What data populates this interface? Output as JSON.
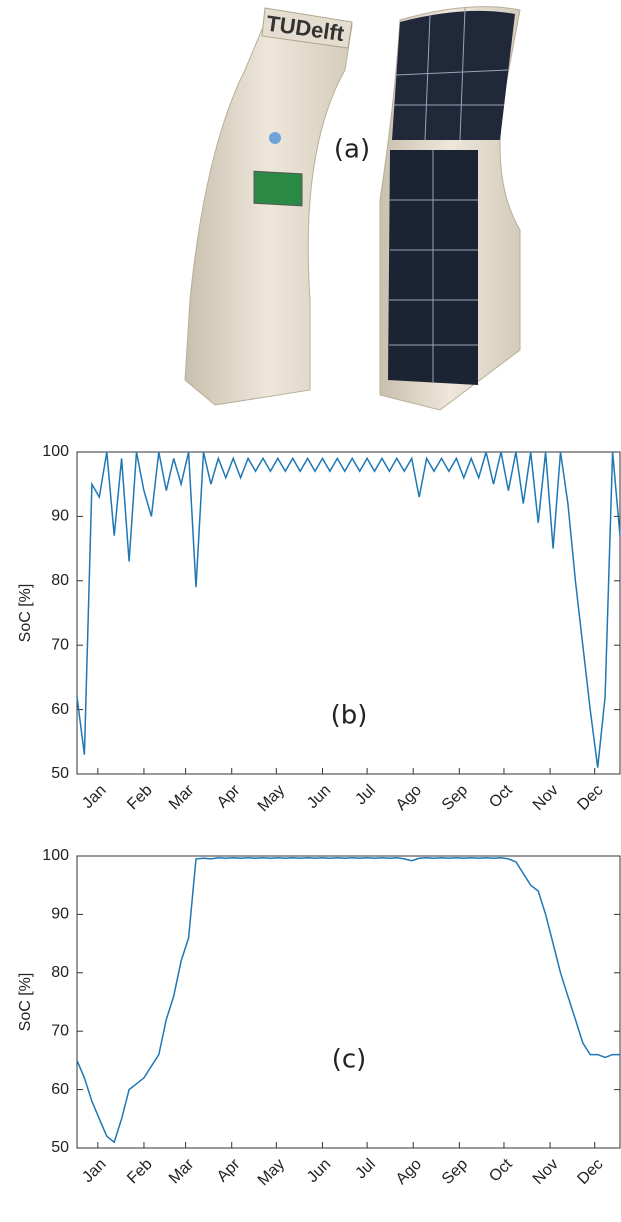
{
  "figure": {
    "label": "(a)",
    "logo": "TUDelft"
  },
  "chart_data": [
    {
      "type": "line",
      "ylabel": "SoC [%]",
      "annotation": "(b)",
      "color": "#1f77b4",
      "xlim": [
        1,
        366
      ],
      "ylim": [
        50,
        100
      ],
      "yticks": [
        50,
        60,
        70,
        80,
        90,
        100
      ],
      "xticks": [
        {
          "value": 15,
          "label": "Jan"
        },
        {
          "value": 46,
          "label": "Feb"
        },
        {
          "value": 74,
          "label": "Mar"
        },
        {
          "value": 105,
          "label": "Apr"
        },
        {
          "value": 135,
          "label": "May"
        },
        {
          "value": 166,
          "label": "Jun"
        },
        {
          "value": 196,
          "label": "Jul"
        },
        {
          "value": 227,
          "label": "Ago"
        },
        {
          "value": 258,
          "label": "Sep"
        },
        {
          "value": 288,
          "label": "Oct"
        },
        {
          "value": 319,
          "label": "Nov"
        },
        {
          "value": 349,
          "label": "Dec"
        }
      ],
      "x": [
        1,
        6,
        11,
        16,
        21,
        26,
        31,
        36,
        41,
        46,
        51,
        56,
        61,
        66,
        71,
        76,
        81,
        86,
        91,
        96,
        101,
        106,
        111,
        116,
        121,
        126,
        131,
        136,
        141,
        146,
        151,
        156,
        161,
        166,
        171,
        176,
        181,
        186,
        191,
        196,
        201,
        206,
        211,
        216,
        221,
        226,
        231,
        236,
        241,
        246,
        251,
        256,
        261,
        266,
        271,
        276,
        281,
        286,
        291,
        296,
        301,
        306,
        311,
        316,
        321,
        326,
        331,
        336,
        341,
        346,
        351,
        356,
        361,
        366
      ],
      "values": [
        62,
        53,
        95,
        93,
        100,
        87,
        99,
        83,
        100,
        94,
        90,
        100,
        94,
        99,
        95,
        100,
        79,
        100,
        95,
        99,
        96,
        99,
        96,
        99,
        97,
        99,
        97,
        99,
        97,
        99,
        97,
        99,
        97,
        99,
        97,
        99,
        97,
        99,
        97,
        99,
        97,
        99,
        97,
        99,
        97,
        99,
        93,
        99,
        97,
        99,
        97,
        99,
        96,
        99,
        96,
        100,
        95,
        100,
        94,
        100,
        92,
        100,
        89,
        100,
        85,
        100,
        92,
        80,
        70,
        60,
        51,
        62,
        100,
        87
      ]
    },
    {
      "type": "line",
      "ylabel": "SoC [%]",
      "annotation": "(c)",
      "color": "#1f77b4",
      "xlim": [
        1,
        366
      ],
      "ylim": [
        50,
        100
      ],
      "yticks": [
        50,
        60,
        70,
        80,
        90,
        100
      ],
      "xticks": [
        {
          "value": 15,
          "label": "Jan"
        },
        {
          "value": 46,
          "label": "Feb"
        },
        {
          "value": 74,
          "label": "Mar"
        },
        {
          "value": 105,
          "label": "Apr"
        },
        {
          "value": 135,
          "label": "May"
        },
        {
          "value": 166,
          "label": "Jun"
        },
        {
          "value": 196,
          "label": "Jul"
        },
        {
          "value": 227,
          "label": "Ago"
        },
        {
          "value": 258,
          "label": "Sep"
        },
        {
          "value": 288,
          "label": "Oct"
        },
        {
          "value": 319,
          "label": "Nov"
        },
        {
          "value": 349,
          "label": "Dec"
        }
      ],
      "x": [
        1,
        6,
        11,
        16,
        21,
        26,
        31,
        36,
        41,
        46,
        51,
        56,
        61,
        66,
        71,
        76,
        81,
        86,
        91,
        96,
        101,
        106,
        111,
        116,
        121,
        126,
        131,
        136,
        141,
        146,
        151,
        156,
        161,
        166,
        171,
        176,
        181,
        186,
        191,
        196,
        201,
        206,
        211,
        216,
        221,
        226,
        231,
        236,
        241,
        246,
        251,
        256,
        261,
        266,
        271,
        276,
        281,
        286,
        291,
        296,
        301,
        306,
        311,
        316,
        321,
        326,
        331,
        336,
        341,
        346,
        351,
        356,
        361,
        366
      ],
      "values": [
        65,
        62,
        58,
        55,
        52,
        51,
        55,
        60,
        61,
        62,
        64,
        66,
        72,
        76,
        82,
        86,
        99.5,
        99.6,
        99.5,
        99.7,
        99.6,
        99.7,
        99.6,
        99.7,
        99.6,
        99.7,
        99.6,
        99.7,
        99.6,
        99.7,
        99.6,
        99.7,
        99.6,
        99.7,
        99.6,
        99.7,
        99.6,
        99.7,
        99.6,
        99.7,
        99.6,
        99.7,
        99.6,
        99.7,
        99.5,
        99.2,
        99.6,
        99.7,
        99.6,
        99.7,
        99.6,
        99.7,
        99.6,
        99.7,
        99.6,
        99.7,
        99.6,
        99.7,
        99.5,
        99.0,
        97,
        95,
        94,
        90,
        85,
        80,
        76,
        72,
        68,
        66,
        66,
        65.5,
        66,
        66
      ]
    }
  ]
}
